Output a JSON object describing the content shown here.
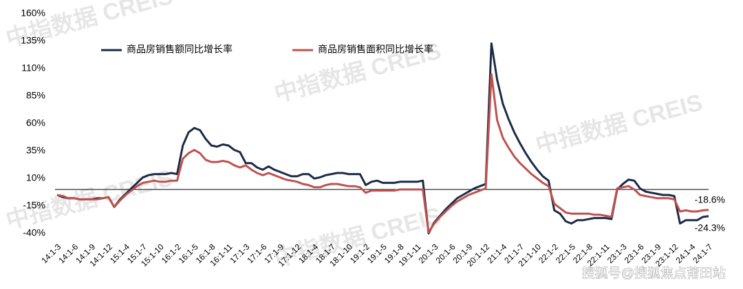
{
  "chart_data": {
    "type": "line",
    "categories": [
      "14:1-3",
      null,
      null,
      "14:1-6",
      null,
      null,
      "14:1-9",
      null,
      null,
      "14:1-12",
      null,
      null,
      "15:1-4",
      null,
      null,
      "15:1-7",
      null,
      null,
      "15:1-10",
      null,
      null,
      "16:1-2",
      null,
      null,
      "16:1-5",
      null,
      null,
      "16:1-8",
      null,
      null,
      "16:1-11",
      null,
      null,
      "17:1-3",
      null,
      null,
      "17:1-6",
      null,
      null,
      "17:1-9",
      null,
      null,
      "17:1-12",
      null,
      null,
      "18:1-4",
      null,
      null,
      "18:1-7",
      null,
      null,
      "18:1-10",
      null,
      null,
      "19:1-2",
      null,
      null,
      "19:1-5",
      null,
      null,
      "19:1-8",
      null,
      null,
      "19:1-11",
      null,
      null,
      "20:1-3",
      null,
      null,
      "20:1-6",
      null,
      null,
      "20:1-9",
      null,
      null,
      "20:1-12",
      null,
      null,
      "21:1-4",
      null,
      null,
      "21:1-7",
      null,
      null,
      "21:1-10",
      null,
      null,
      "22:1-2",
      null,
      null,
      "22:1-5",
      null,
      null,
      "22:1-8",
      null,
      null,
      "22:1-11",
      null,
      null,
      "23:1-3",
      null,
      null,
      "23:1-6",
      null,
      null,
      "23:1-9",
      null,
      null,
      "23:1-12",
      null,
      null,
      "24:1-4",
      null,
      null,
      "24:1-7"
    ],
    "series": [
      {
        "name": "商品房销售额同比增长率",
        "color": "#1b2a45",
        "values": [
          -5,
          -7,
          -8,
          -8,
          -9,
          -9,
          -9,
          -8,
          -8,
          -7,
          -16,
          -9,
          -4,
          1,
          6,
          11,
          13,
          14,
          14,
          14,
          15,
          14,
          40,
          52,
          56,
          54,
          46,
          40,
          39,
          41,
          40,
          36,
          34,
          24,
          24,
          20,
          18,
          21,
          18,
          16,
          14,
          12,
          12,
          14,
          14,
          10,
          11,
          13,
          14,
          15,
          15,
          14,
          14,
          14,
          4,
          7,
          8,
          6,
          6,
          6,
          7,
          7,
          7,
          7,
          8,
          -40,
          -30,
          -24,
          -18,
          -13,
          -8,
          -5,
          -2,
          1,
          3,
          5,
          133,
          100,
          78,
          64,
          52,
          42,
          33,
          25,
          18,
          12,
          8,
          -19,
          -22,
          -29,
          -31,
          -28,
          -28,
          -27,
          -26,
          -26,
          -26,
          -27,
          0,
          5,
          9,
          8,
          1,
          -2,
          -3,
          -4,
          -5,
          -5,
          -6,
          -31,
          -28,
          -28,
          -28,
          -25,
          -24.3
        ],
        "value_labels": [
          null,
          null,
          null,
          null,
          null,
          null,
          null,
          null,
          null,
          null,
          null,
          null,
          null,
          null,
          null,
          null,
          null,
          null,
          null,
          null,
          null,
          null,
          null,
          null,
          null,
          null,
          null,
          null,
          null,
          null,
          null,
          null,
          null,
          null,
          null,
          null,
          null,
          null,
          null,
          null,
          null,
          null,
          null,
          null,
          null,
          null,
          null,
          null,
          null,
          null,
          null,
          null,
          null,
          null,
          null,
          null,
          null,
          null,
          null,
          null,
          null,
          null,
          null,
          null,
          null,
          null,
          null,
          null,
          null,
          null,
          null,
          null,
          null,
          null,
          null,
          null,
          null,
          null,
          null,
          null,
          null,
          null,
          null,
          null,
          null,
          null,
          null,
          null,
          null,
          null,
          null,
          null,
          null,
          null,
          null,
          null,
          null,
          null,
          null,
          null,
          null,
          null,
          null,
          null,
          null,
          null,
          null,
          null,
          null,
          null,
          null,
          null,
          null,
          null,
          "-24.3%"
        ]
      },
      {
        "name": "商品房销售面积同比增长率",
        "color": "#c0504d",
        "values": [
          -5,
          -6,
          -8,
          -8,
          -9,
          -9,
          -9,
          -9,
          -8,
          -7,
          -16,
          -10,
          -5,
          -1,
          3,
          6,
          7,
          8,
          7,
          7,
          8,
          8,
          28,
          33,
          36,
          33,
          27,
          25,
          25,
          26,
          25,
          22,
          20,
          22,
          18,
          15,
          13,
          15,
          13,
          11,
          9,
          8,
          7,
          5,
          4,
          2,
          2,
          4,
          5,
          5,
          4,
          3,
          3,
          2,
          -3,
          -1,
          -1,
          -1,
          -1,
          -1,
          0,
          0,
          0,
          0,
          0,
          -39,
          -31,
          -25,
          -20,
          -15,
          -11,
          -8,
          -5,
          -3,
          -1,
          1,
          105,
          63,
          47,
          38,
          30,
          24,
          19,
          14,
          10,
          6,
          3,
          -13,
          -17,
          -21,
          -22,
          -22,
          -22,
          -22,
          -23,
          -23,
          -24,
          -25,
          1,
          2,
          3,
          0,
          -5,
          -6,
          -7,
          -8,
          -8,
          -8,
          -9,
          -20,
          -19,
          -20,
          -20,
          -19,
          -18.6
        ],
        "value_labels": [
          null,
          null,
          null,
          null,
          null,
          null,
          null,
          null,
          null,
          null,
          null,
          null,
          null,
          null,
          null,
          null,
          null,
          null,
          null,
          null,
          null,
          null,
          null,
          null,
          null,
          null,
          null,
          null,
          null,
          null,
          null,
          null,
          null,
          null,
          null,
          null,
          null,
          null,
          null,
          null,
          null,
          null,
          null,
          null,
          null,
          null,
          null,
          null,
          null,
          null,
          null,
          null,
          null,
          null,
          null,
          null,
          null,
          null,
          null,
          null,
          null,
          null,
          null,
          null,
          null,
          null,
          null,
          null,
          null,
          null,
          null,
          null,
          null,
          null,
          null,
          null,
          null,
          null,
          null,
          null,
          null,
          null,
          null,
          null,
          null,
          null,
          null,
          null,
          null,
          null,
          null,
          null,
          null,
          null,
          null,
          null,
          null,
          null,
          null,
          null,
          null,
          null,
          null,
          null,
          null,
          null,
          null,
          null,
          null,
          null,
          null,
          null,
          null,
          null,
          "-18.6%"
        ]
      }
    ],
    "ylim": [
      -40,
      160
    ],
    "yticks": [
      {
        "value": -40,
        "label": "-40%"
      },
      {
        "value": -15,
        "label": "-15%"
      },
      {
        "value": 10,
        "label": "10%"
      },
      {
        "value": 35,
        "label": "35%"
      },
      {
        "value": 60,
        "label": "60%"
      },
      {
        "value": 85,
        "label": "85%"
      },
      {
        "value": 110,
        "label": "110%"
      },
      {
        "value": 135,
        "label": "135%"
      },
      {
        "value": 160,
        "label": "160%"
      }
    ],
    "grid": false
  },
  "watermark": "中指数据 CREIS",
  "source": "搜狐号@搜狐焦点莆田站"
}
